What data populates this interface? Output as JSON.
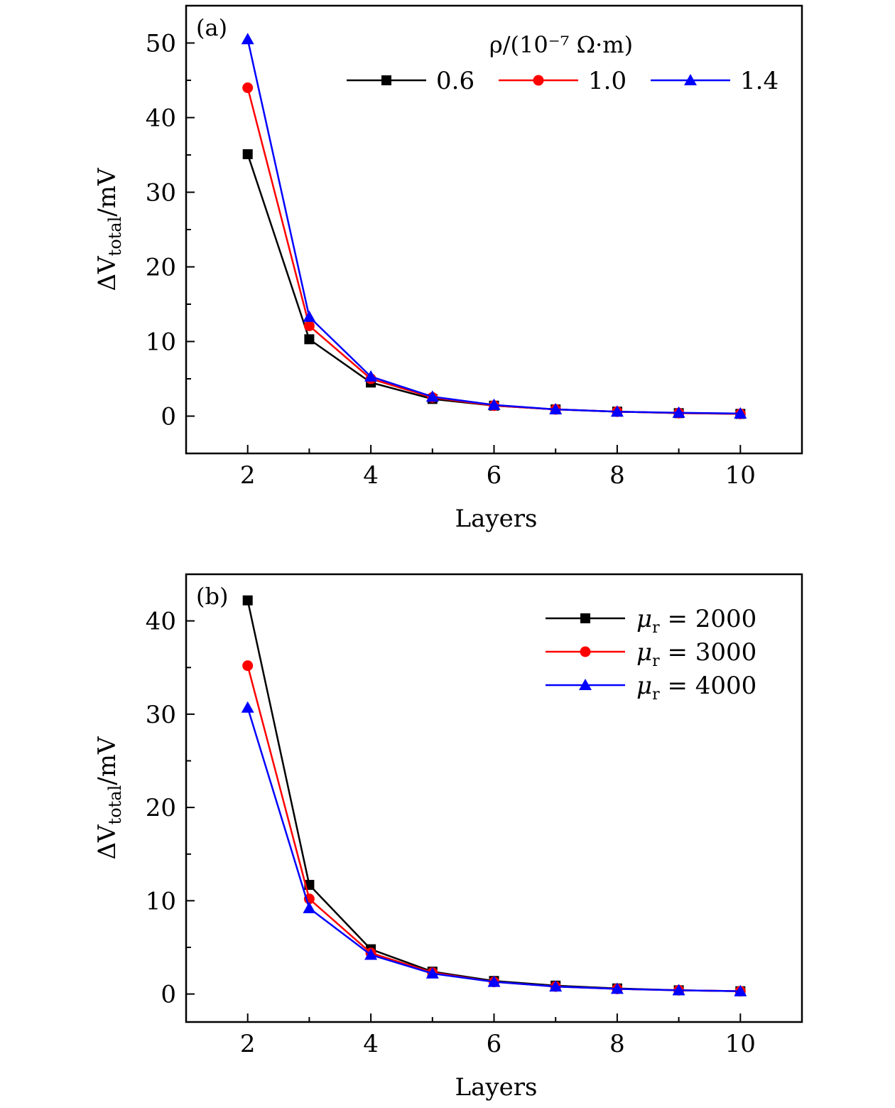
{
  "chart_data": [
    {
      "type": "line",
      "panel_label": "(a)",
      "xlabel": "Layers",
      "ylabel": {
        "main": "ΔV",
        "sub": "total",
        "unit": "/mV"
      },
      "xlim": [
        1,
        11
      ],
      "ylim": [
        -5,
        55
      ],
      "xticks": [
        2,
        4,
        6,
        8,
        10
      ],
      "yticks": [
        0,
        10,
        20,
        30,
        40,
        50
      ],
      "legend": {
        "position": "top-right",
        "title": "ρ/(10⁻⁷ Ω·m)",
        "layout": "horizontal"
      },
      "x": [
        2,
        3,
        4,
        5,
        6,
        7,
        8,
        9,
        10
      ],
      "series": [
        {
          "name": "0.6",
          "color": "#000000",
          "marker": "square",
          "values": [
            35.1,
            10.3,
            4.5,
            2.3,
            1.4,
            0.9,
            0.6,
            0.4,
            0.3
          ]
        },
        {
          "name": "1.0",
          "color": "#ff0000",
          "marker": "circle",
          "values": [
            44.0,
            12.1,
            5.0,
            2.5,
            1.4,
            0.9,
            0.6,
            0.4,
            0.3
          ]
        },
        {
          "name": "1.4",
          "color": "#0000ff",
          "marker": "triangle",
          "values": [
            50.5,
            13.3,
            5.3,
            2.6,
            1.5,
            0.9,
            0.6,
            0.45,
            0.35
          ]
        }
      ]
    },
    {
      "type": "line",
      "panel_label": "(b)",
      "xlabel": "Layers",
      "ylabel": {
        "main": "ΔV",
        "sub": "total",
        "unit": "/mV"
      },
      "xlim": [
        1,
        11
      ],
      "ylim": [
        -3,
        45
      ],
      "xticks": [
        2,
        4,
        6,
        8,
        10
      ],
      "yticks": [
        0,
        10,
        20,
        30,
        40
      ],
      "legend": {
        "position": "top-right",
        "title": "",
        "layout": "vertical"
      },
      "x": [
        2,
        3,
        4,
        5,
        6,
        7,
        8,
        9,
        10
      ],
      "series": [
        {
          "name": "μr = 2000",
          "label_main": "μ",
          "label_sub": "r",
          "label_rest": " = 2000",
          "color": "#000000",
          "marker": "square",
          "values": [
            42.2,
            11.7,
            4.8,
            2.4,
            1.4,
            0.9,
            0.6,
            0.4,
            0.3
          ]
        },
        {
          "name": "μr = 3000",
          "label_main": "μ",
          "label_sub": "r",
          "label_rest": " = 3000",
          "color": "#ff0000",
          "marker": "circle",
          "values": [
            35.2,
            10.2,
            4.4,
            2.3,
            1.3,
            0.8,
            0.55,
            0.4,
            0.3
          ]
        },
        {
          "name": "μr = 4000",
          "label_main": "μ",
          "label_sub": "r",
          "label_rest": " = 4000",
          "color": "#0000ff",
          "marker": "triangle",
          "values": [
            30.7,
            9.2,
            4.2,
            2.2,
            1.3,
            0.8,
            0.55,
            0.4,
            0.3
          ]
        }
      ]
    }
  ]
}
